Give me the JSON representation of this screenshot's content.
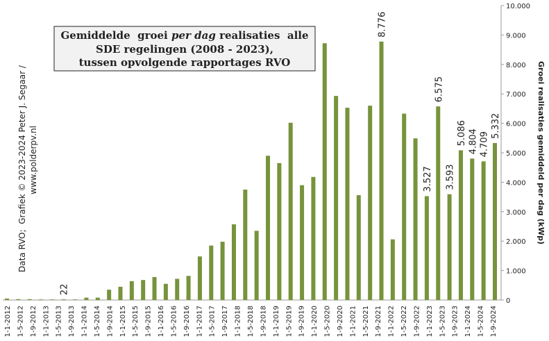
{
  "chart_data": {
    "type": "bar",
    "title": [
      "Gemiddelde  groei",
      "per dag",
      "realisaties  alle",
      "SDE regelingen (2008 - 2023),",
      "tussen opvolgende rapportages RVO"
    ],
    "credit": [
      "Data RVO;  Grafiek © 2023-2024 Peter J. Segaar /",
      "www.polderpv.nl"
    ],
    "y_axis_label": "Groei realisaties gemiddeld per dag (kWp)",
    "color": "#77933c",
    "x_labels": [
      "1-1-2012",
      "1-5-2012",
      "1-9-2012",
      "1-1-2013",
      "1-5-2013",
      "1-9-2013",
      "1-1-2014",
      "1-5-2014",
      "1-9-2014",
      "1-1-2015",
      "1-5-2015",
      "1-9-2015",
      "1-1-2016",
      "1-5-2016",
      "1-9-2016",
      "1-1-2017",
      "1-5-2017",
      "1-9-2017",
      "1-1-2018",
      "1-5-2018",
      "1-9-2018",
      "1-1-2019",
      "1-5-2019",
      "1-9-2019",
      "1-1-2020",
      "1-5-2020",
      "1-9-2020",
      "1-1-2021",
      "1-5-2021",
      "1-9-2021",
      "1-1-2022",
      "1-5-2022",
      "1-9-2022",
      "1-1-2023",
      "1-5-2023",
      "1-9-2023",
      "1-1-2024",
      "1-5-2024",
      "1-9-2024"
    ],
    "values": [
      50,
      30,
      30,
      20,
      20,
      22,
      20,
      80,
      80,
      350,
      450,
      640,
      680,
      780,
      550,
      720,
      820,
      1480,
      1850,
      1980,
      2570,
      3750,
      2350,
      4900,
      4650,
      6020,
      3900,
      4180,
      8720,
      6930,
      6530,
      3560,
      6600,
      8776,
      2060,
      6330,
      5490,
      3527,
      6575,
      3593,
      5086,
      4804,
      4709,
      5332
    ],
    "value_labels": [
      null,
      null,
      null,
      null,
      null,
      "22",
      null,
      null,
      null,
      null,
      null,
      null,
      null,
      null,
      null,
      null,
      null,
      null,
      null,
      null,
      null,
      null,
      null,
      null,
      null,
      null,
      null,
      null,
      null,
      null,
      null,
      null,
      null,
      "8.776",
      null,
      null,
      null,
      "3.527",
      "6.575",
      "3.593",
      "5.086",
      "4.804",
      "4.709",
      "5.332"
    ],
    "value_label_colors": [
      null,
      null,
      null,
      null,
      null,
      "#3333cc",
      null,
      null,
      null,
      null,
      null,
      null,
      null,
      null,
      null,
      null,
      null,
      null,
      null,
      null,
      null,
      null,
      null,
      null,
      null,
      null,
      null,
      null,
      null,
      null,
      null,
      null,
      null,
      "#cc2222",
      null,
      null,
      null,
      "#222222",
      "#222222",
      "#222222",
      "#222222",
      "#222222",
      "#222222",
      "#222222"
    ],
    "ylim": [
      0,
      10000
    ],
    "yticks": [
      0,
      {
        "value": 1000,
        "label": "1.000"
      },
      {
        "value": 2000,
        "label": "2.000"
      },
      {
        "value": 3000,
        "label": "3.000"
      },
      {
        "value": 4000,
        "label": "4.000"
      },
      {
        "value": 5000,
        "label": "5.000"
      },
      {
        "value": 6000,
        "label": "6.000"
      },
      {
        "value": 7000,
        "label": "7.000"
      },
      {
        "value": 8000,
        "label": "8.000"
      },
      {
        "value": 9000,
        "label": "9.000"
      },
      {
        "value": 10000,
        "label": "10.000"
      }
    ],
    "grid": false
  }
}
